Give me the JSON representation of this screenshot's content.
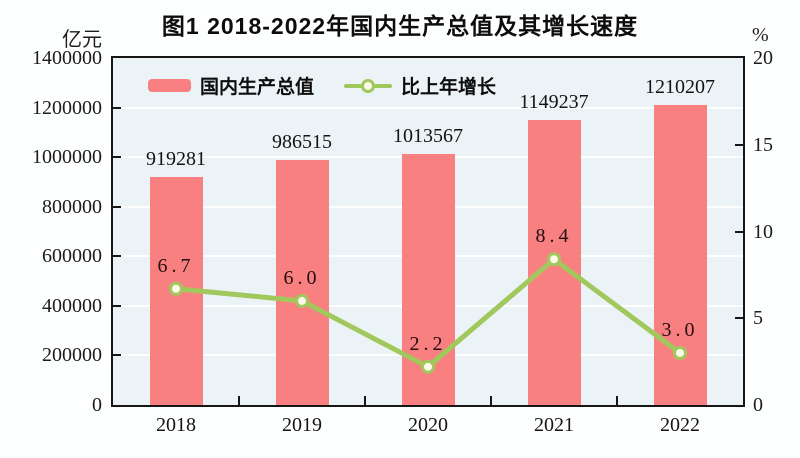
{
  "header": {
    "title": "图1  2018-2022年国内生产总值及其增长速度"
  },
  "legend": {
    "items": [
      {
        "label": "国内生产总值",
        "type": "bar",
        "color": "#f98080"
      },
      {
        "label": "比上年增长",
        "type": "line",
        "color": "#a0c85c"
      }
    ]
  },
  "chart_data": {
    "type": "bar+line",
    "title": "图1  2018-2022年国内生产总值及其增长速度",
    "categories": [
      "2018",
      "2019",
      "2020",
      "2021",
      "2022"
    ],
    "series": [
      {
        "name": "国内生产总值",
        "type": "bar",
        "axis": "left",
        "color": "#f98080",
        "values": [
          919281,
          986515,
          1013567,
          1149237,
          1210207
        ],
        "value_labels": [
          "919281",
          "986515",
          "1013567",
          "1149237",
          "1210207"
        ]
      },
      {
        "name": "比上年增长",
        "type": "line",
        "axis": "right",
        "color": "#a0c85c",
        "marker_fill": "#fcfbe9",
        "values": [
          6.7,
          6.0,
          2.2,
          8.4,
          3.0
        ],
        "value_labels": [
          "6.7",
          "6.0",
          "2.2",
          "8.4",
          "3.0"
        ]
      }
    ],
    "left_axis": {
      "label": "亿元",
      "min": 0,
      "max": 1400000,
      "step": 200000,
      "tick_labels": [
        "0",
        "200000",
        "400000",
        "600000",
        "800000",
        "1000000",
        "1200000",
        "1400000"
      ]
    },
    "right_axis": {
      "label": "%",
      "min": 0,
      "max": 20,
      "step": 5,
      "tick_labels": [
        "0",
        "5",
        "10",
        "15",
        "20"
      ]
    },
    "grid": true,
    "legend_position": "top-inside",
    "plot_background": "#ecf3f6",
    "gridline_color": "#fdfefe"
  }
}
